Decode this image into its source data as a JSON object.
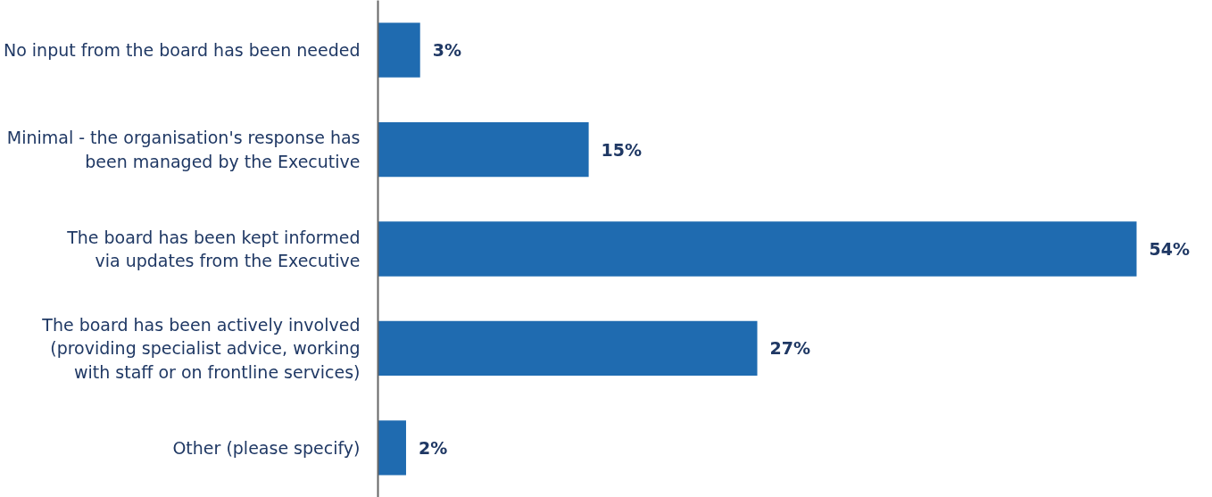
{
  "chart_data": {
    "type": "bar",
    "orientation": "horizontal",
    "categories": [
      "No input from the board has been needed",
      "Minimal - the organisation's response has\nbeen managed by the Executive",
      "The board has been kept informed\nvia updates from the Executive",
      "The board has been actively involved\n(providing specialist advice, working\nwith staff or on frontline services)",
      "Other (please specify)"
    ],
    "values": [
      3,
      15,
      54,
      27,
      2
    ],
    "value_labels": [
      "3%",
      "15%",
      "54%",
      "27%",
      "2%"
    ],
    "color": "#1f6bb0",
    "grid": false
  }
}
